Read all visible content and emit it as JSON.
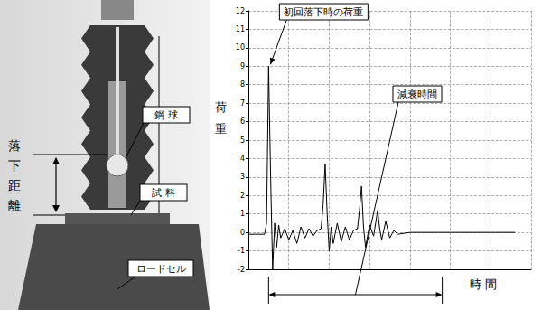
{
  "chart_data": {
    "type": "line",
    "x": [
      0,
      4,
      4.5,
      5,
      5.5,
      6,
      6.5,
      7,
      7.5,
      8,
      9,
      10,
      11,
      12,
      13,
      14,
      15,
      16,
      17,
      18,
      18.5,
      19,
      19.5,
      20,
      20.5,
      21,
      22,
      23,
      24,
      25,
      26,
      27,
      27.5,
      28,
      28.5,
      29,
      30,
      31,
      31.5,
      32,
      32.5,
      33,
      34,
      35,
      36,
      37,
      40,
      50,
      66
    ],
    "values": [
      -0.1,
      -0.1,
      0.5,
      9.0,
      3.0,
      -2.0,
      0.5,
      -0.8,
      0.4,
      -0.3,
      0.2,
      -0.4,
      0.1,
      -0.6,
      0.3,
      -0.3,
      0.2,
      -0.2,
      0.1,
      0.2,
      1.5,
      3.7,
      1.0,
      -1.0,
      0.3,
      -0.6,
      0.5,
      -0.5,
      0.3,
      -0.4,
      0.1,
      0.2,
      1.2,
      2.5,
      0.3,
      -0.8,
      0.4,
      -0.2,
      0.5,
      1.2,
      0.2,
      -0.4,
      0.6,
      -0.3,
      0.1,
      -0.1,
      0,
      0,
      0
    ],
    "color": "#000000",
    "xlim": [
      0,
      70
    ],
    "xticks": [
      0,
      10,
      20,
      30,
      40,
      50,
      60,
      70
    ],
    "ylim": [
      -2,
      12
    ],
    "yticks": [
      -2,
      -1,
      0,
      1,
      2,
      3,
      4,
      5,
      6,
      7,
      8,
      9,
      10,
      11,
      12
    ],
    "grid": true,
    "tick_labels": "y",
    "x_label": "時 間",
    "y_label": "荷 重",
    "annotations": [
      {
        "text": "初回落下時の荷重",
        "x": 5,
        "y": 9.0
      },
      {
        "text": "減衰時間",
        "x": [
          5,
          48
        ]
      }
    ]
  },
  "photo": {
    "labels": {
      "ball": "鋼 球",
      "sample": "試 料",
      "load_cell": "ロードセル",
      "drop_distance": "落 下 距 離"
    }
  }
}
